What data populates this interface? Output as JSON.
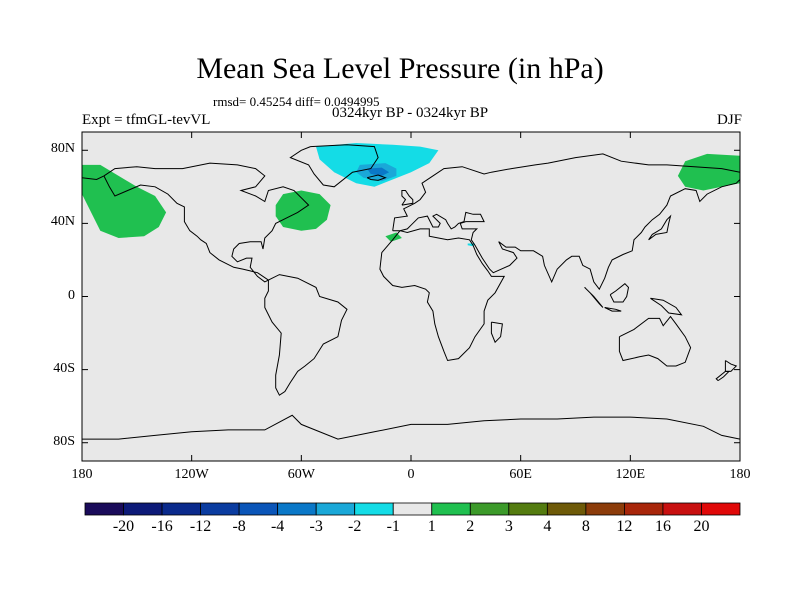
{
  "header": {
    "title": "Mean Sea Level Pressure (in hPa)",
    "stats": "rmsd= 0.45254 diff= 0.0494995",
    "left": "Expt = tfmGL-tevVL",
    "center": "0324kyr BP - 0324kyr BP",
    "right": "DJF"
  },
  "axes": {
    "y_ticks": [
      {
        "label": "80N",
        "value": 80
      },
      {
        "label": "40N",
        "value": 40
      },
      {
        "label": "0",
        "value": 0
      },
      {
        "label": "40S",
        "value": -40
      },
      {
        "label": "80S",
        "value": -80
      }
    ],
    "x_ticks": [
      {
        "label": "180",
        "value": -180
      },
      {
        "label": "120W",
        "value": -120
      },
      {
        "label": "60W",
        "value": -60
      },
      {
        "label": "0",
        "value": 0
      },
      {
        "label": "60E",
        "value": 60
      },
      {
        "label": "120E",
        "value": 120
      },
      {
        "label": "180",
        "value": 180
      }
    ],
    "lat_range": [
      -90,
      90
    ],
    "lon_range": [
      -180,
      180
    ]
  },
  "colorbar": {
    "labels": [
      "-20",
      "-16",
      "-12",
      "-8",
      "-4",
      "-3",
      "-2",
      "-1",
      "1",
      "2",
      "3",
      "4",
      "8",
      "12",
      "16",
      "20"
    ],
    "colors": [
      "#1a0b5a",
      "#0d1a78",
      "#0a2a8c",
      "#0a3ca0",
      "#0a55b8",
      "#0a78c8",
      "#1aa8d8",
      "#14dce6",
      "#e8e8e8",
      "#20c050",
      "#3c9a2a",
      "#547c10",
      "#6e5a08",
      "#8c3c0a",
      "#a8260a",
      "#c81010",
      "#e00808"
    ]
  },
  "map": {
    "background": "#e8e8e8",
    "anomalies": [
      {
        "level": "1",
        "color": "#20c050",
        "region": "north-pacific"
      },
      {
        "level": "1",
        "color": "#20c050",
        "region": "north-atlantic-west"
      },
      {
        "level": "1",
        "color": "#20c050",
        "region": "siberia-east"
      },
      {
        "level": "-1",
        "color": "#14dce6",
        "region": "greenland-iceland"
      },
      {
        "level": "-2",
        "color": "#1aa8d8",
        "region": "iceland-low"
      },
      {
        "level": "-3",
        "color": "#0a78c8",
        "region": "iceland-core"
      }
    ]
  }
}
